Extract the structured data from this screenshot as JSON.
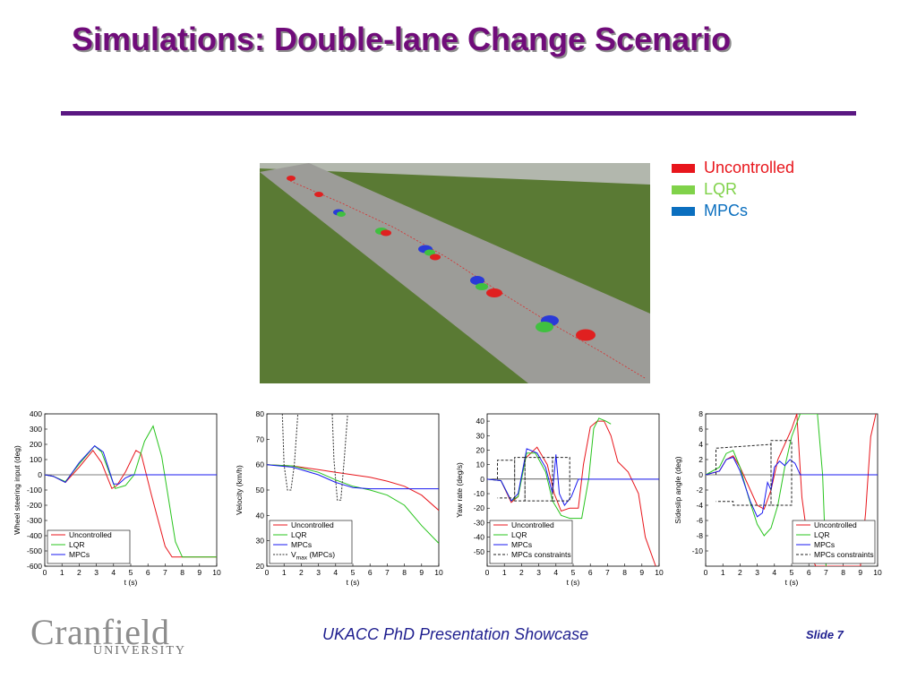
{
  "slide": {
    "title": "Simulations: Double-lane Change Scenario",
    "footer": "UKACC PhD Presentation Showcase",
    "slide_number": "Slide 7",
    "logo_name": "Cranfield",
    "logo_subtitle": "UNIVERSITY"
  },
  "legend": [
    {
      "label": "Uncontrolled",
      "color": "#e8161c"
    },
    {
      "label": "LQR",
      "color": "#80d24a"
    },
    {
      "label": "MPCs",
      "color": "#0b6fbf"
    }
  ],
  "scene": {
    "icon": "car-simulation-image"
  },
  "chart_data": [
    {
      "type": "line",
      "xlabel": "t (s)",
      "ylabel": "Wheel steering input (deg)",
      "xlim": [
        0,
        10
      ],
      "ylim": [
        -600,
        400
      ],
      "xticks": [
        "0",
        "1",
        "2",
        "3",
        "4",
        "5",
        "6",
        "7",
        "8",
        "9",
        "10"
      ],
      "yticks": [
        "-600",
        "-500",
        "-400",
        "-300",
        "-200",
        "-100",
        "0",
        "100",
        "200",
        "300",
        "400"
      ],
      "legend_position": "bottom-left",
      "series": [
        {
          "name": "Uncontrolled",
          "color": "#e8161c",
          "dash": "",
          "x": [
            0,
            0.5,
            1.2,
            2,
            2.8,
            3.3,
            3.9,
            4.2,
            4.7,
            5.3,
            5.6,
            6.2,
            7,
            7.4,
            10
          ],
          "y": [
            0,
            -10,
            -50,
            50,
            160,
            80,
            -90,
            -70,
            20,
            160,
            140,
            -130,
            -470,
            -540,
            -540
          ]
        },
        {
          "name": "LQR",
          "color": "#29c41e",
          "dash": "",
          "x": [
            0,
            0.5,
            1.2,
            2,
            2.9,
            3.3,
            4.1,
            4.7,
            5.2,
            5.8,
            6.3,
            6.8,
            7.6,
            8,
            10
          ],
          "y": [
            0,
            -10,
            -45,
            70,
            190,
            150,
            -90,
            -70,
            0,
            220,
            320,
            120,
            -440,
            -540,
            -540
          ]
        },
        {
          "name": "MPCs",
          "color": "#1a1af0",
          "dash": "",
          "x": [
            0,
            0.5,
            1.2,
            2,
            2.9,
            3.4,
            4,
            4.3,
            4.7,
            5.1,
            5.5,
            6,
            10
          ],
          "y": [
            0,
            -10,
            -50,
            80,
            190,
            150,
            -60,
            -60,
            -20,
            0,
            0,
            0,
            0
          ]
        }
      ]
    },
    {
      "type": "line",
      "xlabel": "t (s)",
      "ylabel": "Velocity (km/h)",
      "xlim": [
        0,
        10
      ],
      "ylim": [
        20,
        80
      ],
      "xticks": [
        "0",
        "1",
        "2",
        "3",
        "4",
        "5",
        "6",
        "7",
        "8",
        "9",
        "10"
      ],
      "yticks": [
        "20",
        "30",
        "40",
        "50",
        "60",
        "70",
        "80"
      ],
      "legend_position": "bottom-left",
      "series": [
        {
          "name": "Uncontrolled",
          "color": "#e8161c",
          "dash": "",
          "x": [
            0,
            1.5,
            3,
            4,
            5,
            6,
            7,
            8,
            9,
            10
          ],
          "y": [
            60,
            59.5,
            58,
            57,
            56,
            55,
            53.5,
            51.5,
            48,
            42
          ]
        },
        {
          "name": "LQR",
          "color": "#29c41e",
          "dash": "",
          "x": [
            0,
            1.5,
            3,
            4,
            5,
            6,
            7,
            8,
            9,
            10
          ],
          "y": [
            60,
            59.5,
            57,
            54,
            51.5,
            50,
            48,
            44,
            36,
            29
          ]
        },
        {
          "name": "MPCs",
          "color": "#1a1af0",
          "dash": "",
          "x": [
            0,
            1.5,
            3,
            4,
            5,
            6,
            7,
            8,
            10
          ],
          "y": [
            60,
            59,
            56,
            53,
            51,
            50.5,
            50.5,
            50.5,
            50.5
          ]
        },
        {
          "name": "V",
          "name_sub": "max",
          "name_suffix": " (MPCs)",
          "color": "#333333",
          "dash": "2,1.5",
          "x": [
            0.9,
            1,
            1.2,
            1.4,
            1.6,
            1.8,
            1.9,
            3.8,
            3.9,
            4.1,
            4.3,
            4.5,
            4.7,
            4.8
          ],
          "y": [
            80,
            60,
            50,
            50,
            60,
            80,
            80,
            80,
            62,
            46,
            46,
            62,
            80,
            80
          ]
        }
      ]
    },
    {
      "type": "line",
      "xlabel": "t (s)",
      "ylabel": "Yaw rate (deg/s)",
      "xlim": [
        0,
        10
      ],
      "ylim": [
        -60,
        45
      ],
      "xticks": [
        "0",
        "1",
        "2",
        "3",
        "4",
        "5",
        "6",
        "7",
        "8",
        "9",
        "10"
      ],
      "yticks": [
        "-50",
        "-40",
        "-30",
        "-20",
        "-10",
        "0",
        "10",
        "20",
        "30",
        "40"
      ],
      "legend_position": "bottom-left",
      "series": [
        {
          "name": "Uncontrolled",
          "color": "#e8161c",
          "dash": "",
          "x": [
            0,
            0.8,
            1.4,
            1.8,
            2.2,
            2.9,
            3.5,
            3.9,
            4.3,
            4.8,
            5.3,
            5.6,
            6,
            6.4,
            6.8,
            7.2,
            7.6,
            8.2,
            8.8,
            9.2,
            9.8
          ],
          "y": [
            0,
            -1,
            -16,
            -12,
            14,
            22,
            10,
            -10,
            -22,
            -20,
            -20,
            10,
            36,
            40,
            40,
            30,
            12,
            5,
            -10,
            -40,
            -60
          ]
        },
        {
          "name": "LQR",
          "color": "#29c41e",
          "dash": "",
          "x": [
            0,
            0.8,
            1.4,
            1.8,
            2.3,
            2.8,
            3.4,
            3.8,
            4.3,
            4.8,
            5.5,
            5.9,
            6.2,
            6.5,
            6.9,
            7.2
          ],
          "y": [
            0,
            -1,
            -15,
            -12,
            18,
            18,
            5,
            -15,
            -25,
            -27,
            -27,
            0,
            35,
            42,
            40,
            38
          ]
        },
        {
          "name": "MPCs",
          "color": "#1a1af0",
          "dash": "",
          "x": [
            0,
            0.8,
            1.4,
            1.8,
            2.3,
            2.9,
            3.4,
            3.8,
            4,
            4.2,
            4.5,
            4.9,
            5.3,
            6,
            10
          ],
          "y": [
            0,
            -1,
            -15,
            -10,
            21,
            18,
            8,
            -10,
            17,
            -10,
            -18,
            -12,
            0,
            0,
            0
          ]
        },
        {
          "name": "MPCs constraints",
          "color": "#222222",
          "dash": "3,2",
          "x": [
            0.6,
            0.6,
            1.6,
            1.6,
            2.2,
            2.2,
            3.8,
            3.8,
            4.8,
            4.8,
            3.8,
            3.8,
            2.2,
            2.2,
            1.6,
            1.6,
            0.6
          ],
          "y": [
            0,
            13,
            13,
            -15,
            -15,
            15,
            15,
            -15,
            -15,
            15,
            15,
            -15,
            -15,
            15,
            15,
            -13,
            -13
          ]
        }
      ]
    },
    {
      "type": "line",
      "xlabel": "t (s)",
      "ylabel": "Sideslip angle (deg)",
      "xlim": [
        0,
        10
      ],
      "ylim": [
        -12,
        8
      ],
      "xticks": [
        "0",
        "1",
        "2",
        "3",
        "4",
        "5",
        "6",
        "7",
        "8",
        "9",
        "10"
      ],
      "yticks": [
        "-10",
        "-8",
        "-6",
        "-4",
        "-2",
        "0",
        "2",
        "4",
        "6",
        "8"
      ],
      "legend_position": "bottom-right",
      "series": [
        {
          "name": "Uncontrolled",
          "color": "#e8161c",
          "dash": "",
          "x": [
            0,
            0.8,
            1.2,
            1.6,
            2,
            2.6,
            3,
            3.4,
            3.8,
            4.2,
            4.6,
            5,
            5.3,
            5.6,
            5.9,
            6.2,
            6.4,
            9,
            9.3,
            9.6,
            9.9
          ],
          "y": [
            0,
            0.5,
            2,
            2.5,
            1,
            -2,
            -4,
            -4.5,
            -2,
            2,
            4,
            6,
            8,
            -3,
            -8,
            -11,
            -12,
            -12,
            -5,
            5,
            8
          ]
        },
        {
          "name": "LQR",
          "color": "#29c41e",
          "dash": "",
          "x": [
            0,
            0.8,
            1.2,
            1.6,
            2,
            2.5,
            3,
            3.4,
            3.8,
            4.2,
            4.6,
            5,
            5.5,
            6,
            6.5,
            6.8,
            7
          ],
          "y": [
            0,
            1,
            2.8,
            3.2,
            1,
            -3,
            -6.5,
            -8,
            -7,
            -4,
            1,
            5,
            8,
            8,
            8,
            0,
            -12
          ]
        },
        {
          "name": "MPCs",
          "color": "#1a1af0",
          "dash": "",
          "x": [
            0,
            0.8,
            1.2,
            1.6,
            2,
            2.6,
            3,
            3.3,
            3.6,
            3.8,
            4,
            4.3,
            4.6,
            4.9,
            5.2,
            5.5,
            10
          ],
          "y": [
            0,
            0.5,
            2,
            2.3,
            0.5,
            -3.5,
            -5.5,
            -5,
            -1,
            -2,
            1,
            1.8,
            1.2,
            2,
            1.5,
            0,
            0
          ]
        },
        {
          "name": "MPCs constraints",
          "color": "#222222",
          "dash": "3,2",
          "x": [
            0.6,
            0.6,
            3.8,
            3.8,
            5,
            5,
            3.8,
            3.8,
            1.6,
            1.6,
            0.6
          ],
          "y": [
            0,
            3.5,
            4,
            -4,
            -4,
            4.5,
            4.5,
            -4,
            -4,
            -3.5,
            -3.5
          ]
        }
      ]
    }
  ]
}
